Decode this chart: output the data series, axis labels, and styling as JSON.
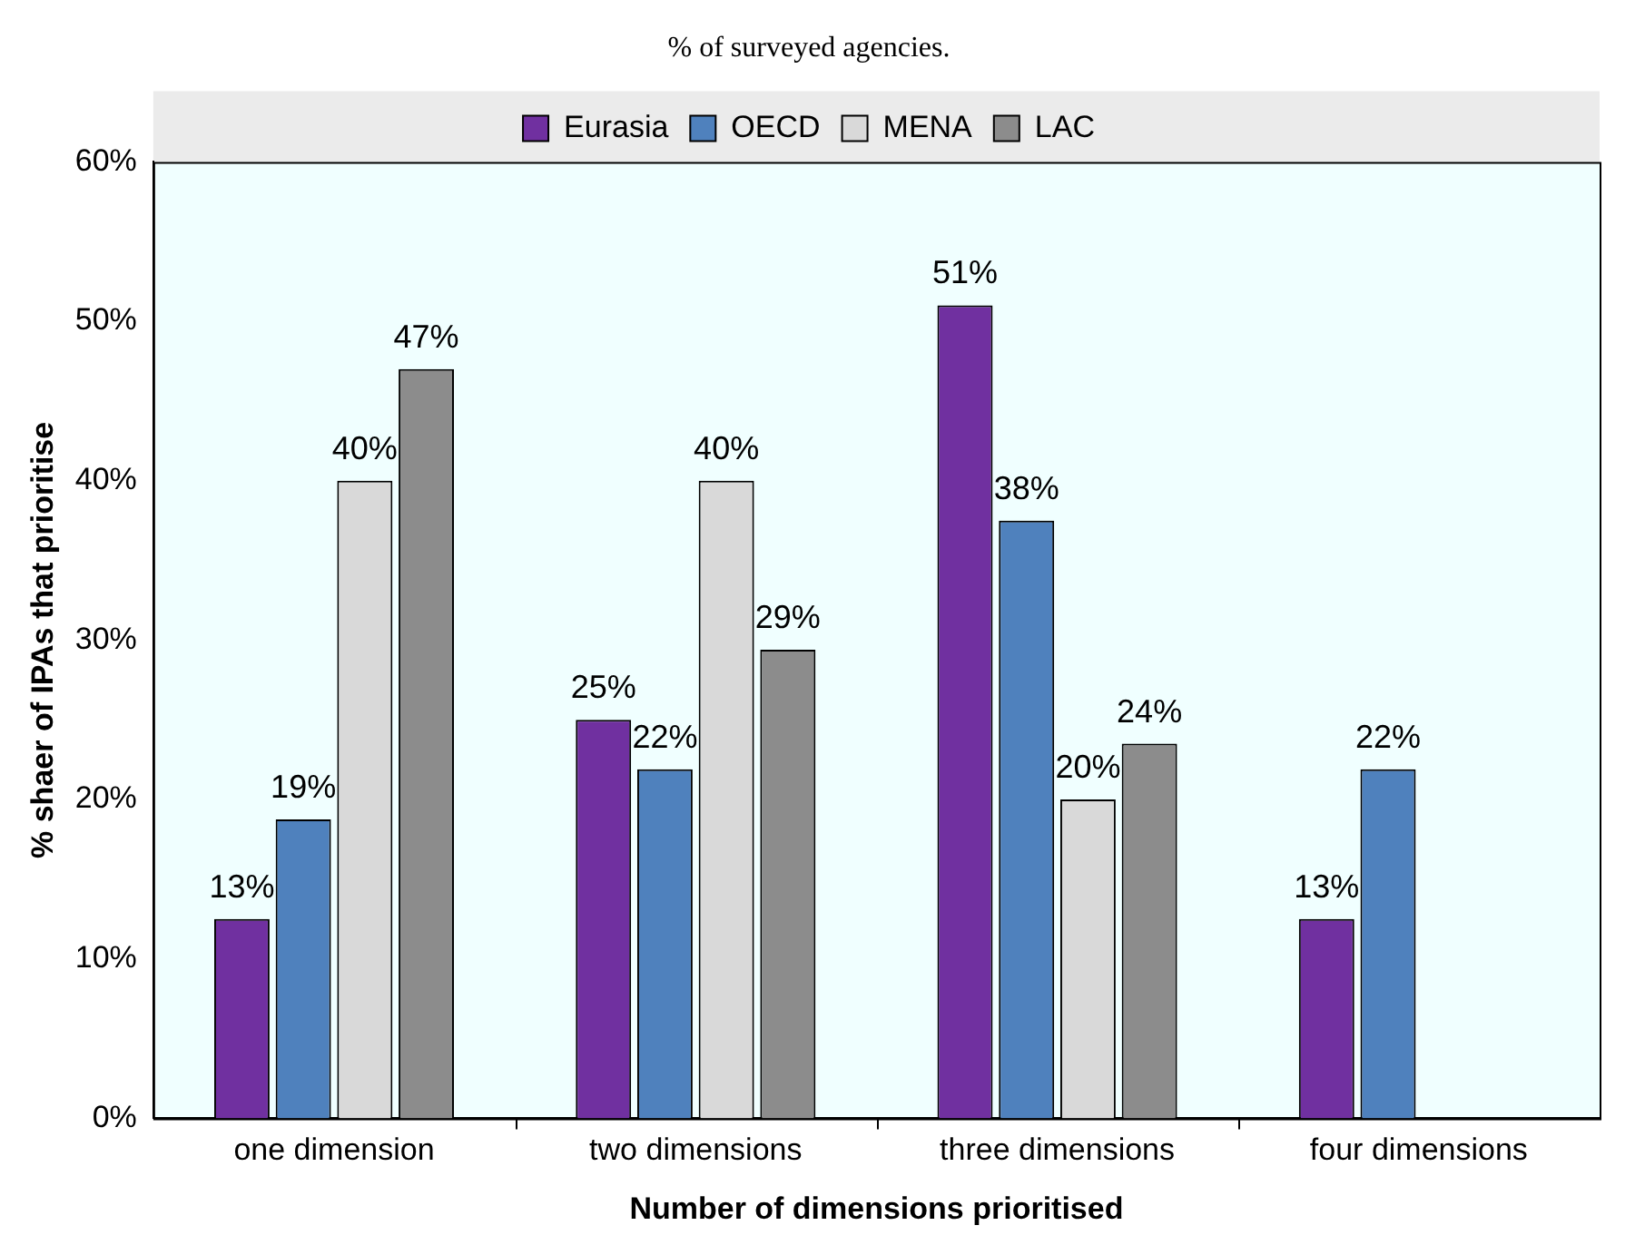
{
  "chart_data": {
    "type": "bar",
    "title": "% of surveyed agencies.",
    "xlabel": "Number of dimensions prioritised",
    "ylabel": "% shaer of IPAs that prioritise",
    "categories": [
      "one dimension",
      "two dimensions",
      "three dimensions",
      "four dimensions"
    ],
    "series": [
      {
        "name": "Eurasia",
        "color": "#7030a0",
        "values": [
          12.5,
          25,
          51,
          12.5
        ],
        "value_labels": [
          "13%",
          "25%",
          "51%",
          "13%"
        ]
      },
      {
        "name": "OECD",
        "color": "#4f81bd",
        "values": [
          18.75,
          21.9,
          37.5,
          21.9
        ],
        "value_labels": [
          "19%",
          "22%",
          "38%",
          "22%"
        ]
      },
      {
        "name": "MENA",
        "color": "#d9d9d9",
        "values": [
          40,
          40,
          20,
          null
        ],
        "value_labels": [
          "40%",
          "40%",
          "20%",
          null
        ]
      },
      {
        "name": "LAC",
        "color": "#8c8c8c",
        "values": [
          47,
          29.4,
          23.5,
          null
        ],
        "value_labels": [
          "47%",
          "29%",
          "24%",
          null
        ]
      }
    ],
    "ylim": [
      0,
      60
    ],
    "yticks": [
      {
        "value": 0,
        "label": "0%"
      },
      {
        "value": 10,
        "label": "10%"
      },
      {
        "value": 20,
        "label": "20%"
      },
      {
        "value": 30,
        "label": "30%"
      },
      {
        "value": 40,
        "label": "40%"
      },
      {
        "value": 50,
        "label": "50%"
      },
      {
        "value": 60,
        "label": "60%"
      }
    ],
    "grid": false,
    "legend": "top"
  }
}
